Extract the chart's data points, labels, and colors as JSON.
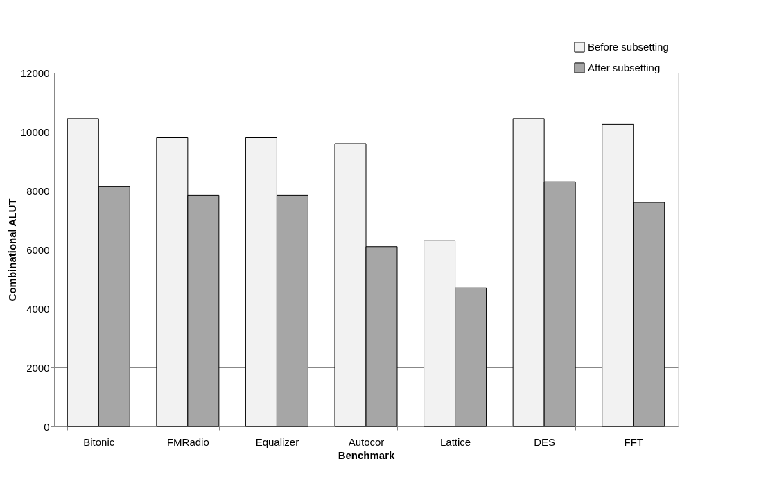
{
  "chart_data": {
    "type": "bar",
    "xlabel": "Benchmark",
    "ylabel": "Combinational ALUT",
    "categories": [
      "Bitonic",
      "FMRadio",
      "Equalizer",
      "Autocor",
      "Lattice",
      "DES",
      "FFT"
    ],
    "series": [
      {
        "name": "Before subsetting",
        "color": "#f2f2f2",
        "values": [
          10450,
          9800,
          9800,
          9600,
          6300,
          10450,
          10250
        ]
      },
      {
        "name": "After subsetting",
        "color": "#a6a6a6",
        "values": [
          8150,
          7850,
          7850,
          6100,
          4700,
          8300,
          7600
        ]
      }
    ],
    "ylim": [
      0,
      12000
    ],
    "yticks": [
      0,
      2000,
      4000,
      6000,
      8000,
      10000,
      12000
    ],
    "grid": "y",
    "legend": "top right"
  }
}
